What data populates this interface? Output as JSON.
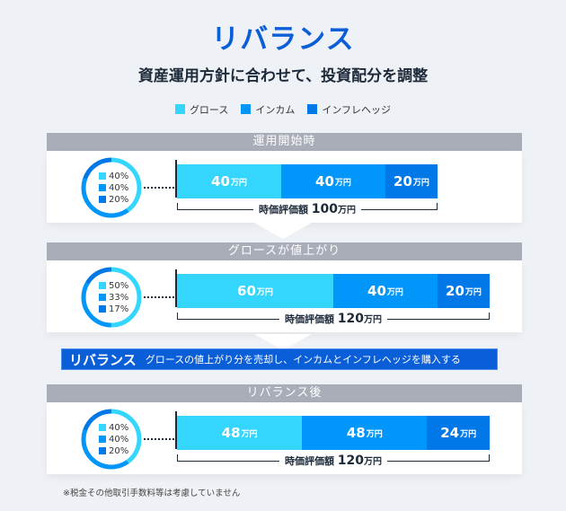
{
  "title": "リバランス",
  "subtitle": "資産運用方針に合わせて、投資配分を調整",
  "legend": [
    {
      "label": "グロース",
      "color": "#35d6fd"
    },
    {
      "label": "インカム",
      "color": "#0096fa"
    },
    {
      "label": "インフレヘッジ",
      "color": "#0078e8"
    }
  ],
  "unit": "万円",
  "total_label": "時価評価額",
  "sections": [
    {
      "heading": "運用開始時",
      "percents": [
        "40%",
        "40%",
        "20%"
      ],
      "values": [
        40,
        40,
        20
      ],
      "labels": [
        "40",
        "40",
        "20"
      ],
      "total": "100"
    },
    {
      "heading": "グロースが値上がり",
      "percents": [
        "50%",
        "33%",
        "17%"
      ],
      "values": [
        60,
        40,
        20
      ],
      "labels": [
        "60",
        "40",
        "20"
      ],
      "total": "120"
    },
    {
      "heading": "リバランス後",
      "percents": [
        "40%",
        "40%",
        "20%"
      ],
      "values": [
        48,
        48,
        24
      ],
      "labels": [
        "48",
        "48",
        "24"
      ],
      "total": "120"
    }
  ],
  "rebalance": {
    "label": "リバランス",
    "text": "グロースの値上がり分を売却し、インカムとインフレヘッジを購入する"
  },
  "footnote": "※税金その他取引手数料等は考慮していません"
}
